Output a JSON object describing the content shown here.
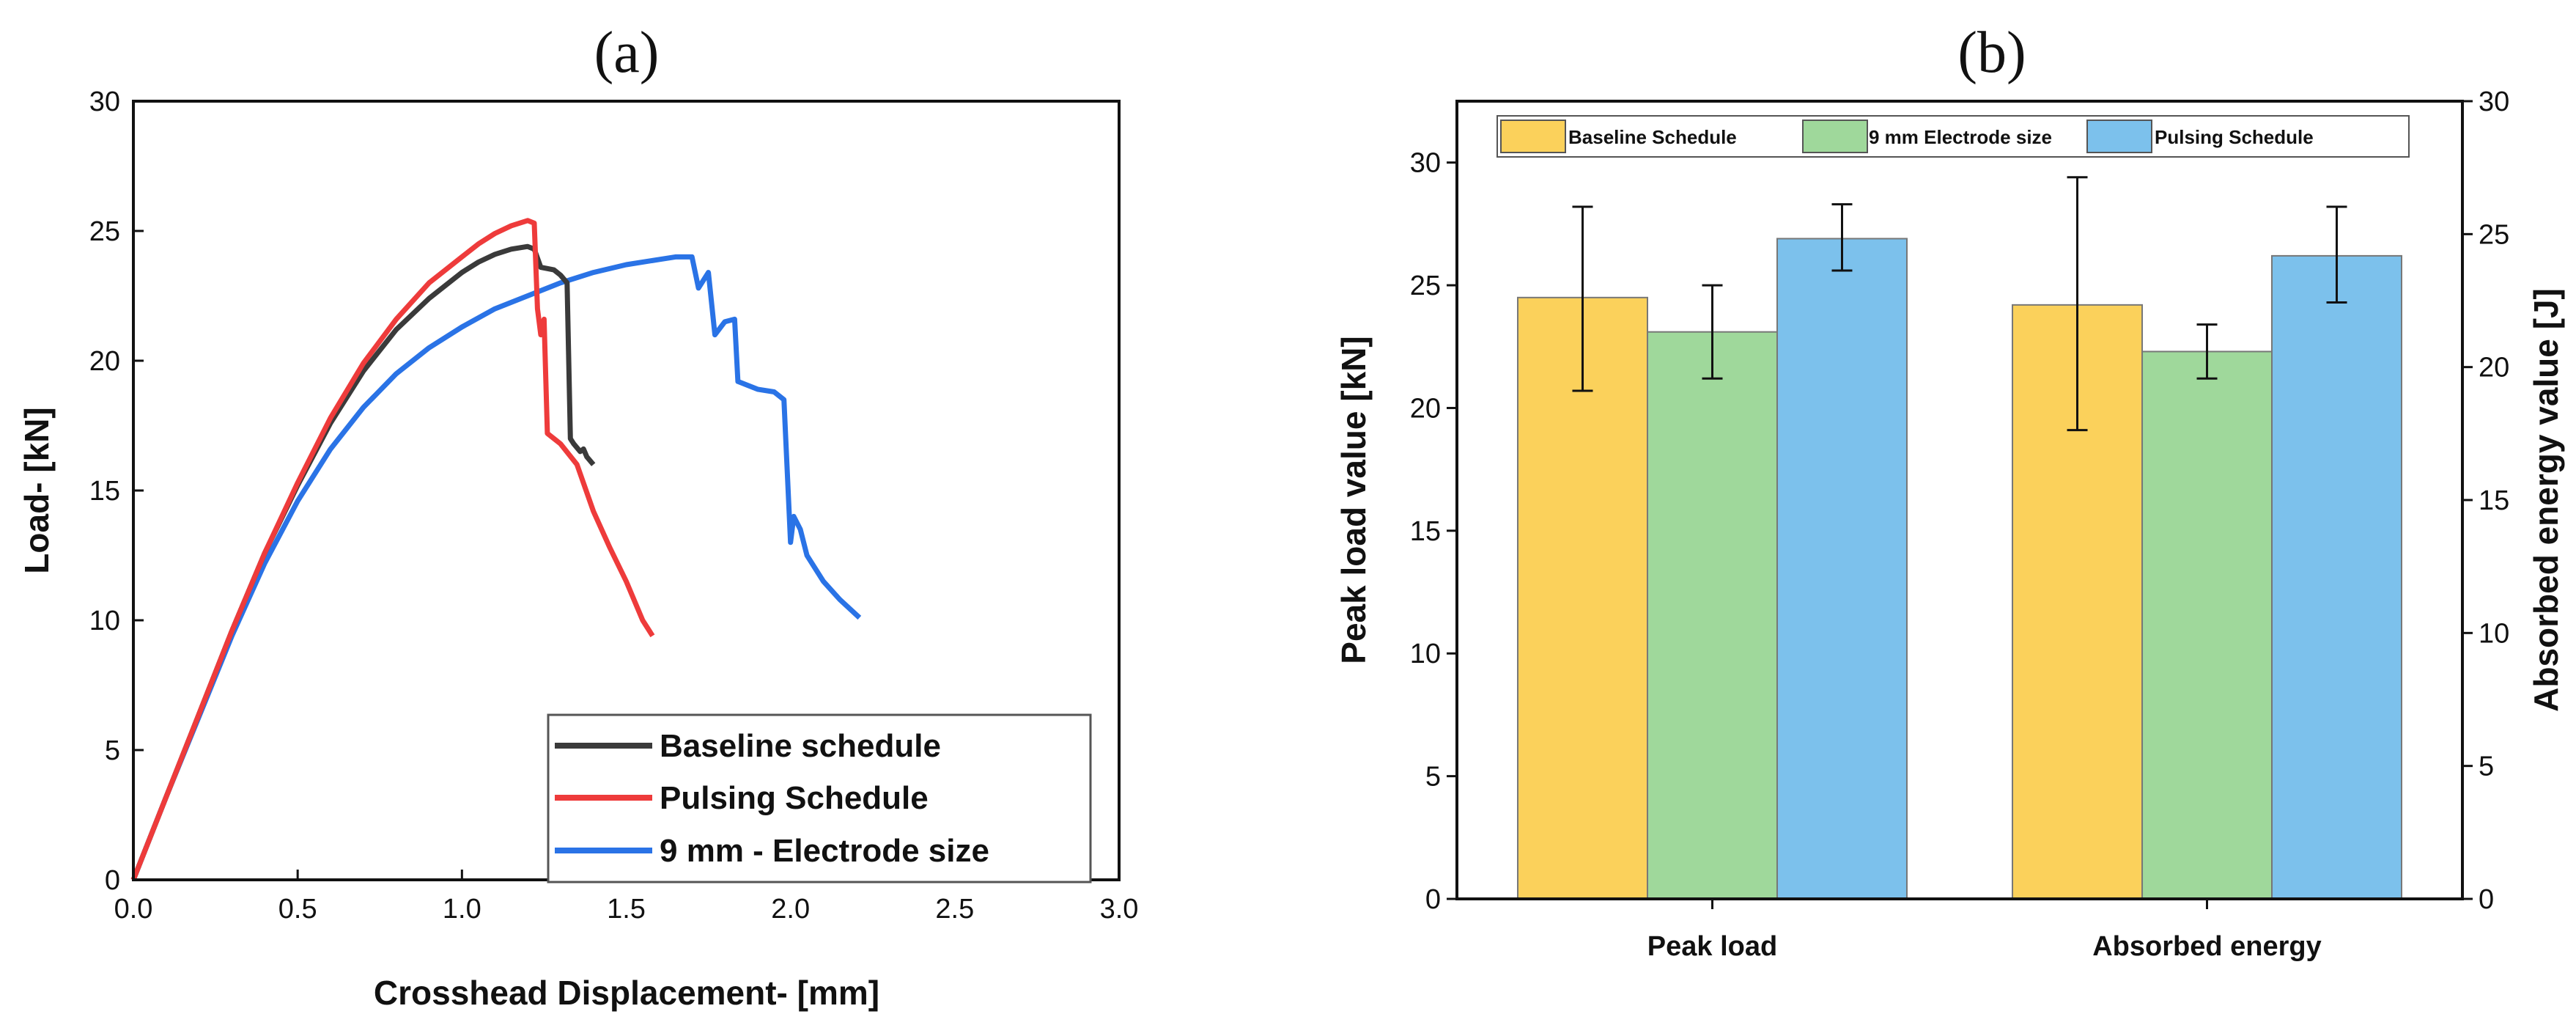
{
  "chart_data": [
    {
      "panel_label": "(a)",
      "type": "line",
      "xlabel": "Crosshead Displacement- [mm]",
      "ylabel": "Load- [kN]",
      "xlim": [
        0,
        3.0
      ],
      "ylim": [
        0,
        30
      ],
      "x_ticks": [
        "0.0",
        "0.5",
        "1.0",
        "1.5",
        "2.0",
        "2.5",
        "3.0"
      ],
      "y_ticks": [
        "0",
        "5",
        "10",
        "15",
        "20",
        "25",
        "30"
      ],
      "grid": false,
      "legend_position": "bottom-right",
      "series": [
        {
          "name": "Baseline schedule",
          "color": "#3a3a3a",
          "points": [
            [
              0,
              0
            ],
            [
              0.1,
              3.2
            ],
            [
              0.2,
              6.4
            ],
            [
              0.3,
              9.6
            ],
            [
              0.4,
              12.6
            ],
            [
              0.5,
              15.2
            ],
            [
              0.6,
              17.6
            ],
            [
              0.7,
              19.6
            ],
            [
              0.8,
              21.2
            ],
            [
              0.9,
              22.4
            ],
            [
              1.0,
              23.4
            ],
            [
              1.05,
              23.8
            ],
            [
              1.1,
              24.1
            ],
            [
              1.15,
              24.3
            ],
            [
              1.2,
              24.4
            ],
            [
              1.22,
              24.3
            ],
            [
              1.24,
              23.6
            ],
            [
              1.28,
              23.5
            ],
            [
              1.3,
              23.3
            ],
            [
              1.32,
              23.0
            ],
            [
              1.33,
              17.0
            ],
            [
              1.34,
              16.8
            ],
            [
              1.36,
              16.5
            ],
            [
              1.37,
              16.6
            ],
            [
              1.38,
              16.3
            ],
            [
              1.4,
              16.0
            ]
          ]
        },
        {
          "name": "Pulsing Schedule",
          "color": "#ee3b3b",
          "points": [
            [
              0,
              0
            ],
            [
              0.1,
              3.2
            ],
            [
              0.2,
              6.4
            ],
            [
              0.3,
              9.6
            ],
            [
              0.4,
              12.6
            ],
            [
              0.5,
              15.3
            ],
            [
              0.6,
              17.8
            ],
            [
              0.7,
              19.9
            ],
            [
              0.8,
              21.6
            ],
            [
              0.9,
              23.0
            ],
            [
              1.0,
              24.0
            ],
            [
              1.05,
              24.5
            ],
            [
              1.1,
              24.9
            ],
            [
              1.15,
              25.2
            ],
            [
              1.2,
              25.4
            ],
            [
              1.22,
              25.3
            ],
            [
              1.23,
              22.0
            ],
            [
              1.24,
              21.0
            ],
            [
              1.25,
              21.6
            ],
            [
              1.26,
              17.2
            ],
            [
              1.28,
              17.0
            ],
            [
              1.3,
              16.8
            ],
            [
              1.35,
              16.0
            ],
            [
              1.4,
              14.2
            ],
            [
              1.45,
              12.8
            ],
            [
              1.5,
              11.5
            ],
            [
              1.55,
              10.0
            ],
            [
              1.58,
              9.4
            ]
          ]
        },
        {
          "name": "9 mm - Electrode size",
          "color": "#2a73e6",
          "points": [
            [
              0,
              0
            ],
            [
              0.1,
              3.2
            ],
            [
              0.2,
              6.3
            ],
            [
              0.3,
              9.4
            ],
            [
              0.4,
              12.2
            ],
            [
              0.5,
              14.6
            ],
            [
              0.6,
              16.6
            ],
            [
              0.7,
              18.2
            ],
            [
              0.8,
              19.5
            ],
            [
              0.9,
              20.5
            ],
            [
              1.0,
              21.3
            ],
            [
              1.1,
              22.0
            ],
            [
              1.2,
              22.5
            ],
            [
              1.3,
              23.0
            ],
            [
              1.4,
              23.4
            ],
            [
              1.5,
              23.7
            ],
            [
              1.6,
              23.9
            ],
            [
              1.65,
              24.0
            ],
            [
              1.7,
              24.0
            ],
            [
              1.72,
              22.8
            ],
            [
              1.75,
              23.4
            ],
            [
              1.77,
              21.0
            ],
            [
              1.8,
              21.5
            ],
            [
              1.83,
              21.6
            ],
            [
              1.84,
              19.2
            ],
            [
              1.9,
              18.9
            ],
            [
              1.95,
              18.8
            ],
            [
              1.98,
              18.5
            ],
            [
              2.0,
              13.0
            ],
            [
              2.01,
              14.0
            ],
            [
              2.03,
              13.5
            ],
            [
              2.05,
              12.5
            ],
            [
              2.1,
              11.5
            ],
            [
              2.15,
              10.8
            ],
            [
              2.21,
              10.1
            ]
          ]
        }
      ]
    },
    {
      "panel_label": "(b)",
      "type": "bar",
      "categories": [
        "Peak load",
        "Absorbed energy"
      ],
      "ylabel": "Peak load value [kN]",
      "y2label": "Absorbed energy value [J]",
      "ylim": [
        0,
        32.5
      ],
      "y2lim": [
        0,
        30
      ],
      "y_ticks": [
        "0",
        "5",
        "10",
        "15",
        "20",
        "25",
        "30"
      ],
      "y2_ticks": [
        "0",
        "5",
        "10",
        "15",
        "20",
        "25",
        "30"
      ],
      "grid": false,
      "legend_position": "top",
      "series": [
        {
          "name": "Baseline Schedule",
          "color": "#fbd15b",
          "values": [
            24.5,
            24.2
          ],
          "errors": [
            [
              20.7,
              28.2
            ],
            [
              19.1,
              29.4
            ]
          ]
        },
        {
          "name": "9 mm Electrode size",
          "color": "#9fd89b",
          "values": [
            23.1,
            22.3
          ],
          "errors": [
            [
              21.2,
              25.0
            ],
            [
              21.2,
              23.4
            ]
          ]
        },
        {
          "name": "Pulsing Schedule",
          "color": "#7cc1ec",
          "values": [
            26.9,
            26.2
          ],
          "errors": [
            [
              25.6,
              28.3
            ],
            [
              24.3,
              28.2
            ]
          ]
        }
      ]
    }
  ]
}
